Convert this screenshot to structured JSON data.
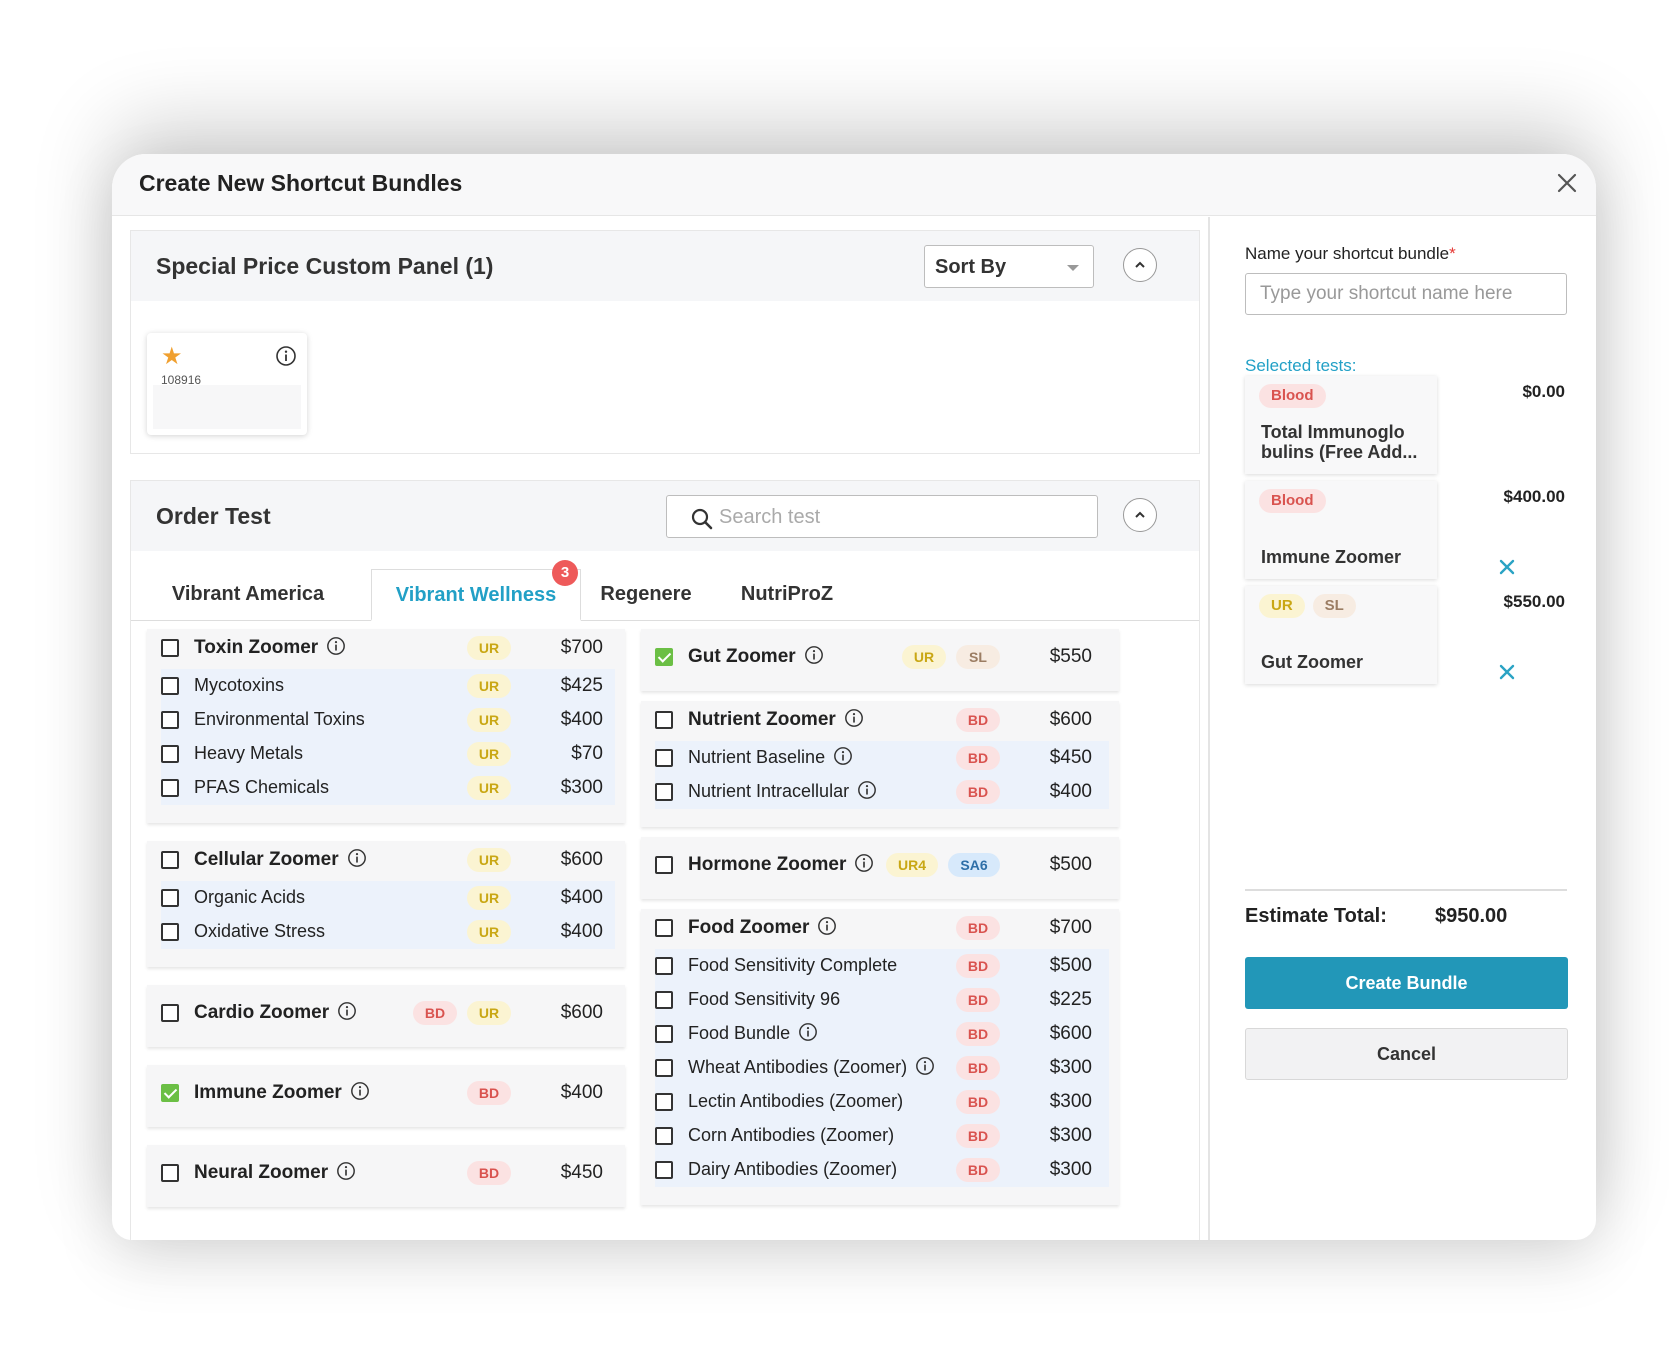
{
  "modal": {
    "title": "Create New Shortcut Bundles",
    "close_icon": "close-icon"
  },
  "special_panel": {
    "title": "Special Price Custom Panel (1)",
    "sort_label": "Sort By",
    "card": {
      "code": "108916",
      "icon": "star-icon"
    }
  },
  "order_test": {
    "title": "Order Test",
    "search_placeholder": "Search test",
    "tabs": [
      {
        "label": "Vibrant America"
      },
      {
        "label": "Vibrant Wellness",
        "badge": "3",
        "active": true
      },
      {
        "label": "Regenere"
      },
      {
        "label": "NutriProZ"
      }
    ],
    "left_groups": [
      {
        "name": "Toxin Zoomer",
        "tags": [
          "UR"
        ],
        "price": "$700",
        "checked": false,
        "items": [
          {
            "name": "Mycotoxins",
            "tags": [
              "UR"
            ],
            "price": "$425"
          },
          {
            "name": "Environmental Toxins",
            "tags": [
              "UR"
            ],
            "price": "$400"
          },
          {
            "name": "Heavy Metals",
            "tags": [
              "UR"
            ],
            "price": "$70"
          },
          {
            "name": "PFAS Chemicals",
            "tags": [
              "UR"
            ],
            "price": "$300"
          }
        ]
      },
      {
        "name": "Cellular Zoomer",
        "tags": [
          "UR"
        ],
        "price": "$600",
        "checked": false,
        "items": [
          {
            "name": "Organic Acids",
            "tags": [
              "UR"
            ],
            "price": "$400"
          },
          {
            "name": "Oxidative Stress",
            "tags": [
              "UR"
            ],
            "price": "$400"
          }
        ]
      },
      {
        "name": "Cardio Zoomer",
        "tags": [
          "BD",
          "UR"
        ],
        "price": "$600",
        "checked": false
      },
      {
        "name": "Immune Zoomer",
        "tags": [
          "BD"
        ],
        "price": "$400",
        "checked": true
      },
      {
        "name": "Neural Zoomer",
        "tags": [
          "BD"
        ],
        "price": "$450",
        "checked": false
      }
    ],
    "right_groups": [
      {
        "name": "Gut Zoomer",
        "tags": [
          "UR",
          "SL"
        ],
        "price": "$550",
        "checked": true
      },
      {
        "name": "Nutrient Zoomer",
        "tags": [
          "BD"
        ],
        "price": "$600",
        "checked": false,
        "items": [
          {
            "name": "Nutrient Baseline",
            "tags": [
              "BD"
            ],
            "price": "$450",
            "info": true
          },
          {
            "name": "Nutrient Intracellular",
            "tags": [
              "BD"
            ],
            "price": "$400",
            "info": true
          }
        ]
      },
      {
        "name": "Hormone Zoomer",
        "tags": [
          "UR4",
          "SA6"
        ],
        "price": "$500",
        "checked": false
      },
      {
        "name": "Food Zoomer",
        "tags": [
          "BD"
        ],
        "price": "$700",
        "checked": false,
        "items": [
          {
            "name": "Food Sensitivity Complete",
            "tags": [
              "BD"
            ],
            "price": "$500"
          },
          {
            "name": "Food Sensitivity 96",
            "tags": [
              "BD"
            ],
            "price": "$225"
          },
          {
            "name": "Food Bundle",
            "tags": [
              "BD"
            ],
            "price": "$600",
            "info": true
          },
          {
            "name": "Wheat Antibodies (Zoomer)",
            "tags": [
              "BD"
            ],
            "price": "$300",
            "info": true
          },
          {
            "name": "Lectin Antibodies (Zoomer)",
            "tags": [
              "BD"
            ],
            "price": "$300"
          },
          {
            "name": "Corn Antibodies (Zoomer)",
            "tags": [
              "BD"
            ],
            "price": "$300"
          },
          {
            "name": "Dairy Antibodies (Zoomer)",
            "tags": [
              "BD"
            ],
            "price": "$300"
          }
        ]
      }
    ]
  },
  "bundle": {
    "name_label": "Name your shortcut bundle",
    "required_mark": "*",
    "name_placeholder": "Type your shortcut name here",
    "selected_label": "Selected tests:",
    "selected": [
      {
        "tags": [
          "Blood"
        ],
        "name": "Total Immunoglo bulins (Free Add...",
        "price": "$0.00",
        "removable": false
      },
      {
        "tags": [
          "Blood"
        ],
        "name": "Immune Zoomer",
        "price": "$400.00",
        "removable": true
      },
      {
        "tags": [
          "UR",
          "SL"
        ],
        "name": "Gut Zoomer",
        "price": "$550.00",
        "removable": true
      }
    ],
    "estimate_label": "Estimate Total:",
    "estimate_value": "$950.00",
    "create_label": "Create Bundle",
    "cancel_label": "Cancel"
  },
  "colors": {
    "accent": "#2297b8",
    "checked": "#6bbf45",
    "badge": "#ee5a5a",
    "active_tab": "#22a0c6"
  }
}
